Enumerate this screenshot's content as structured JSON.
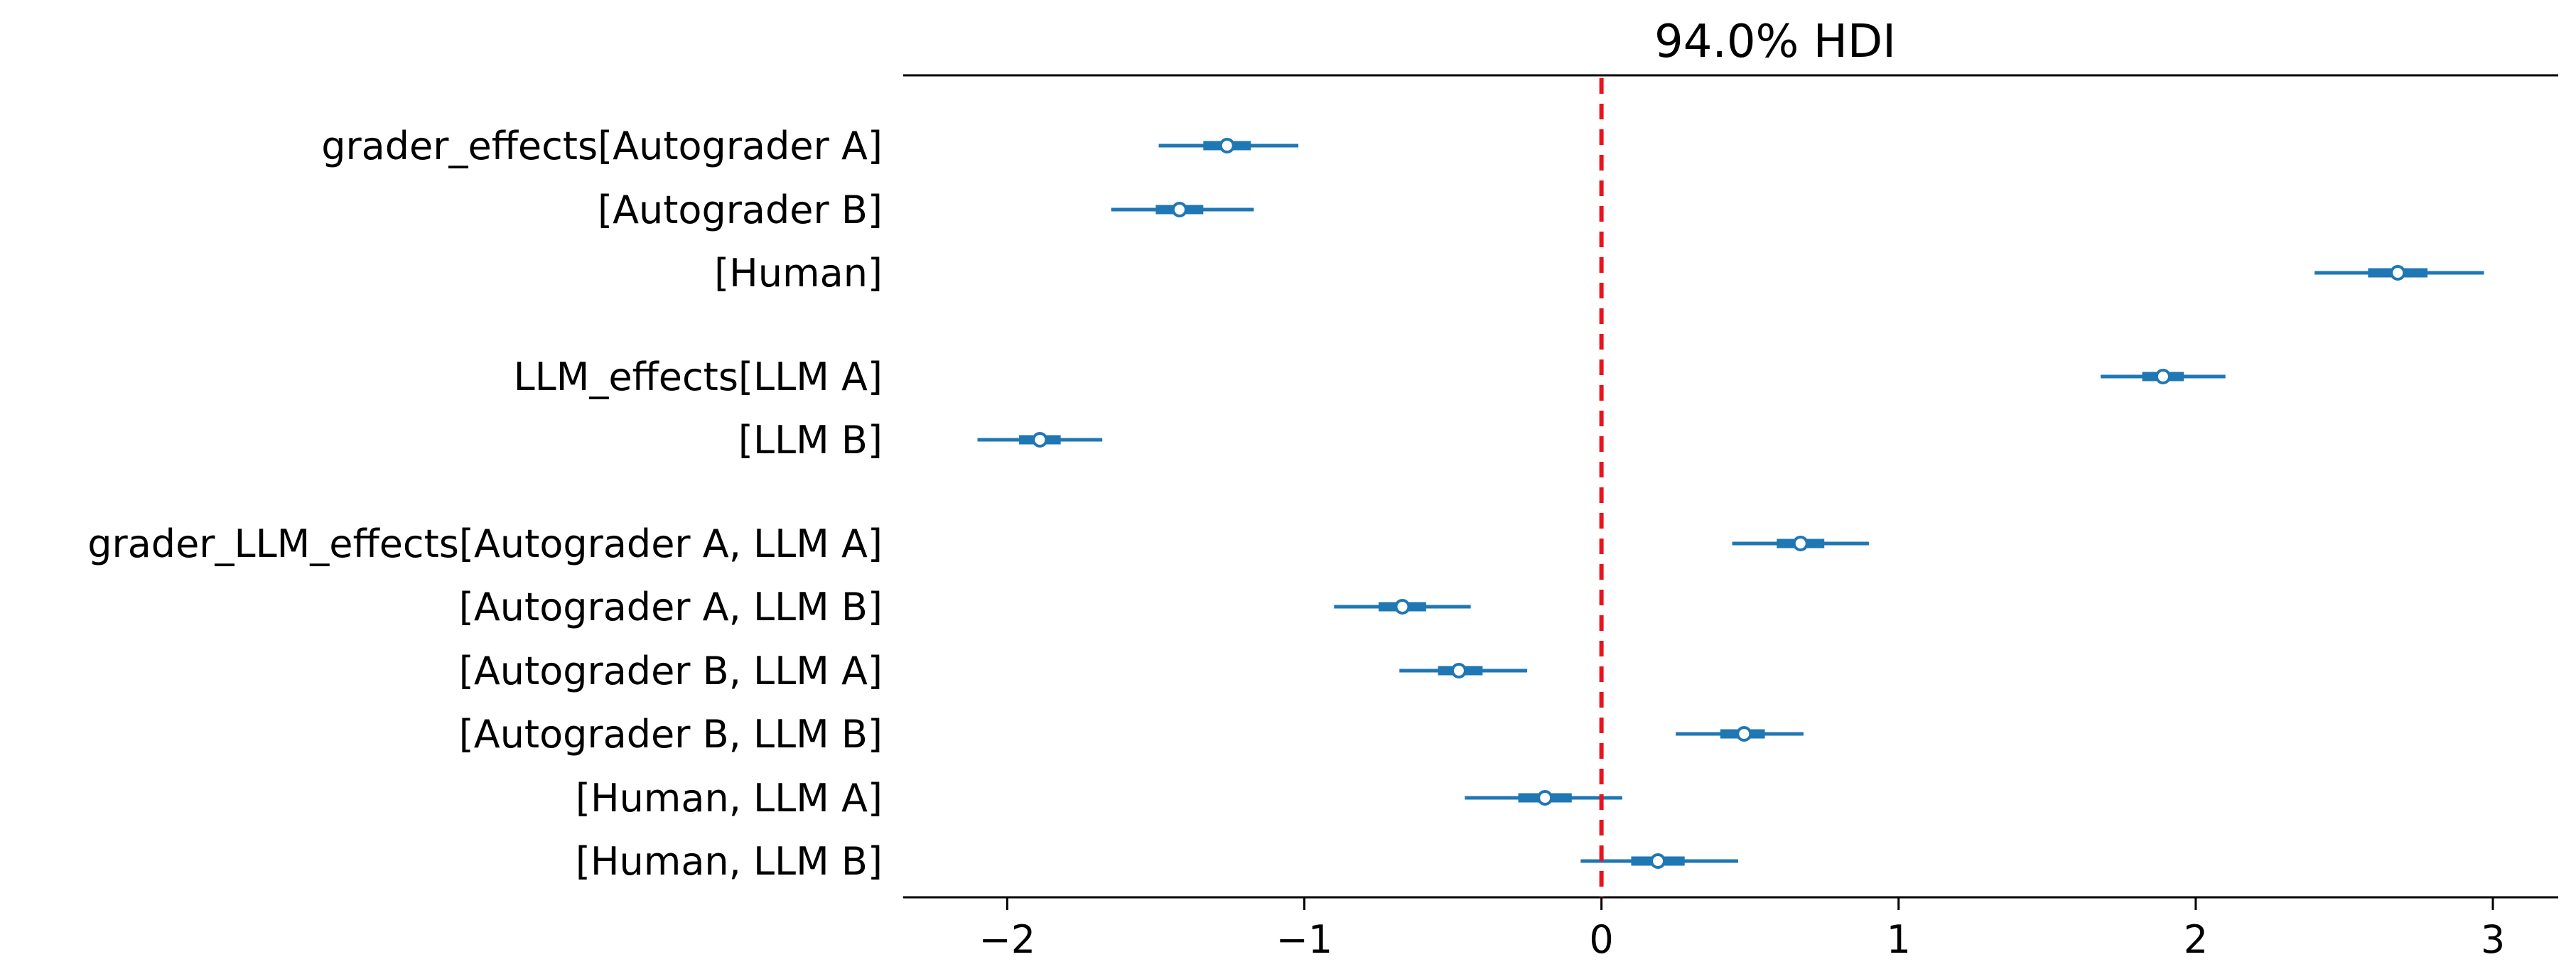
{
  "chart_data": {
    "type": "forest",
    "title": "94.0% HDI",
    "xlabel": "",
    "ylabel": "",
    "xlim": [
      -2.35,
      3.22
    ],
    "xticks": [
      -2,
      -1,
      0,
      1,
      2,
      3
    ],
    "xtick_labels": [
      "−2",
      "−1",
      "0",
      "1",
      "2",
      "3"
    ],
    "reference_line": {
      "x": 0,
      "style": "dashed",
      "color": "#e8141c"
    },
    "series_color": "#1f77b4",
    "groups": [
      {
        "name": "grader_effects",
        "rows": [
          {
            "label": "grader_effects[Autograder A]",
            "mean": -1.26,
            "hdi_94": [
              -1.49,
              -1.02
            ],
            "iqr": [
              -1.34,
              -1.18
            ]
          },
          {
            "label": "[Autograder B]",
            "mean": -1.42,
            "hdi_94": [
              -1.65,
              -1.17
            ],
            "iqr": [
              -1.5,
              -1.34
            ]
          },
          {
            "label": "[Human]",
            "mean": 2.68,
            "hdi_94": [
              2.4,
              2.97
            ],
            "iqr": [
              2.58,
              2.78
            ]
          }
        ]
      },
      {
        "name": "LLM_effects",
        "rows": [
          {
            "label": "LLM_effects[LLM A]",
            "mean": 1.89,
            "hdi_94": [
              1.68,
              2.1
            ],
            "iqr": [
              1.82,
              1.96
            ]
          },
          {
            "label": "[LLM B]",
            "mean": -1.89,
            "hdi_94": [
              -2.1,
              -1.68
            ],
            "iqr": [
              -1.96,
              -1.82
            ]
          }
        ]
      },
      {
        "name": "grader_LLM_effects",
        "rows": [
          {
            "label": "grader_LLM_effects[Autograder A, LLM A]",
            "mean": 0.67,
            "hdi_94": [
              0.44,
              0.9
            ],
            "iqr": [
              0.59,
              0.75
            ]
          },
          {
            "label": "[Autograder A, LLM B]",
            "mean": -0.67,
            "hdi_94": [
              -0.9,
              -0.44
            ],
            "iqr": [
              -0.75,
              -0.59
            ]
          },
          {
            "label": "[Autograder B, LLM A]",
            "mean": -0.48,
            "hdi_94": [
              -0.68,
              -0.25
            ],
            "iqr": [
              -0.55,
              -0.4
            ]
          },
          {
            "label": "[Autograder B, LLM B]",
            "mean": 0.48,
            "hdi_94": [
              0.25,
              0.68
            ],
            "iqr": [
              0.4,
              0.55
            ]
          },
          {
            "label": "[Human, LLM A]",
            "mean": -0.19,
            "hdi_94": [
              -0.46,
              0.07
            ],
            "iqr": [
              -0.28,
              -0.1
            ]
          },
          {
            "label": "[Human, LLM B]",
            "mean": 0.19,
            "hdi_94": [
              -0.07,
              0.46
            ],
            "iqr": [
              0.1,
              0.28
            ]
          }
        ]
      }
    ],
    "grid": false,
    "legend": "none"
  }
}
